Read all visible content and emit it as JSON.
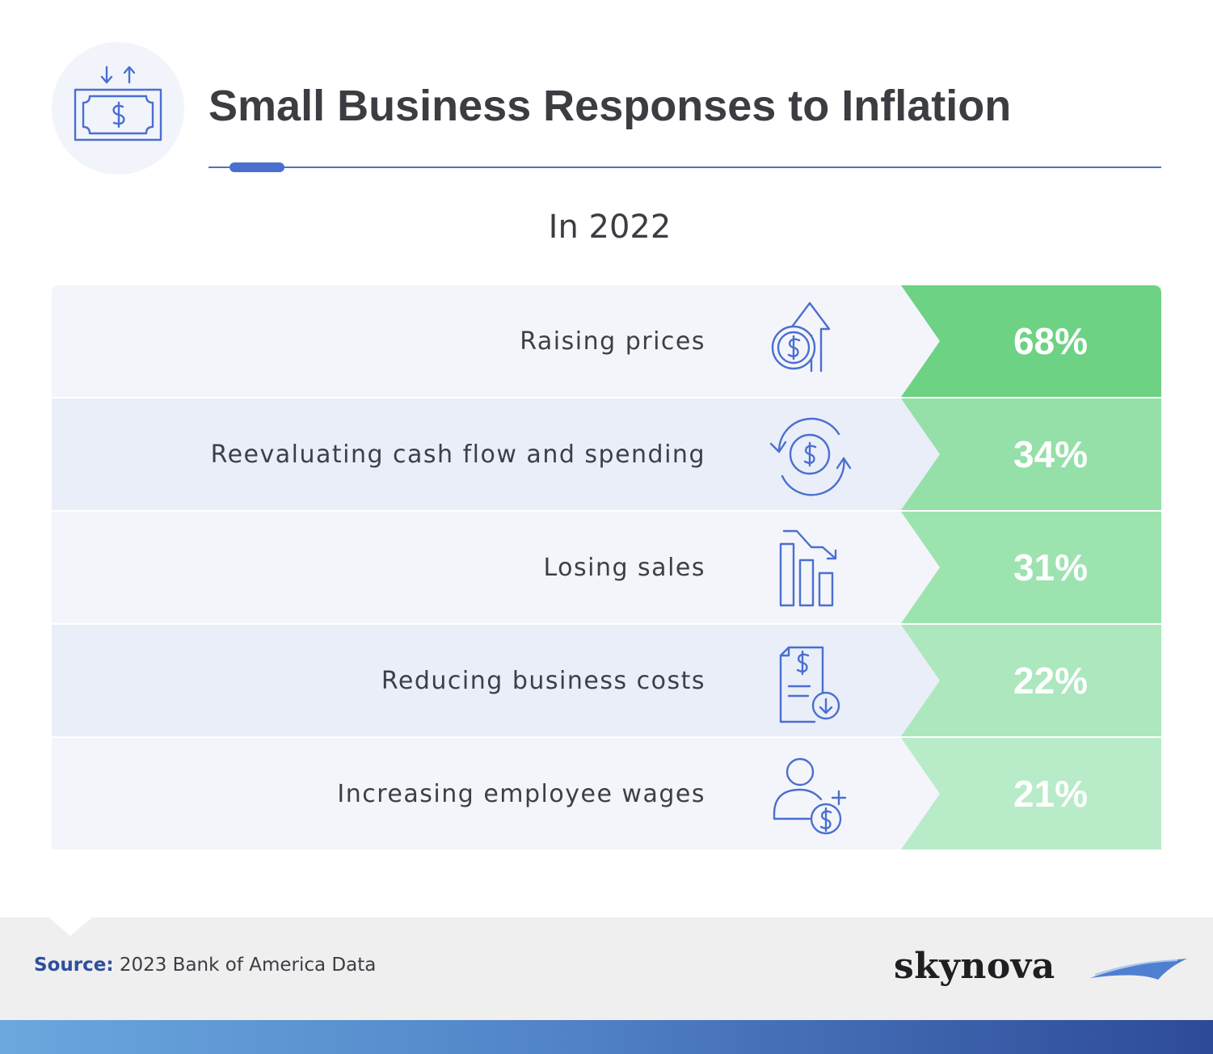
{
  "header": {
    "title": "Small Business Responses to Inflation",
    "subtitle": "In 2022",
    "icon": "money-bill-arrows-icon"
  },
  "chart_data": {
    "type": "table",
    "title": "Small Business Responses to Inflation",
    "subtitle": "In 2022",
    "categories": [
      "Raising prices",
      "Reevaluating cash flow and spending",
      "Losing sales",
      "Reducing business costs",
      "Increasing employee wages"
    ],
    "values": [
      68,
      34,
      31,
      22,
      21
    ],
    "unit": "%",
    "rows": [
      {
        "label": "Raising prices",
        "value": 68,
        "value_text": "68%",
        "icon": "dollar-coin-up-arrow-icon",
        "color": "#6dd283"
      },
      {
        "label": "Reevaluating cash flow and spending",
        "value": 34,
        "value_text": "34%",
        "icon": "cash-flow-cycle-icon",
        "color": "#94e0a8"
      },
      {
        "label": "Losing sales",
        "value": 31,
        "value_text": "31%",
        "icon": "declining-bar-chart-icon",
        "color": "#9de3b0"
      },
      {
        "label": "Reducing business costs",
        "value": 22,
        "value_text": "22%",
        "icon": "invoice-down-arrow-icon",
        "color": "#ace7bd"
      },
      {
        "label": "Increasing employee wages",
        "value": 21,
        "value_text": "21%",
        "icon": "employee-dollar-plus-icon",
        "color": "#b8ebc8"
      }
    ],
    "row_colors": [
      "#f4f5fa",
      "#eaeef8"
    ]
  },
  "footer": {
    "source_label": "Source:",
    "source_text": " 2023 Bank of America Data",
    "brand": "skynova"
  }
}
